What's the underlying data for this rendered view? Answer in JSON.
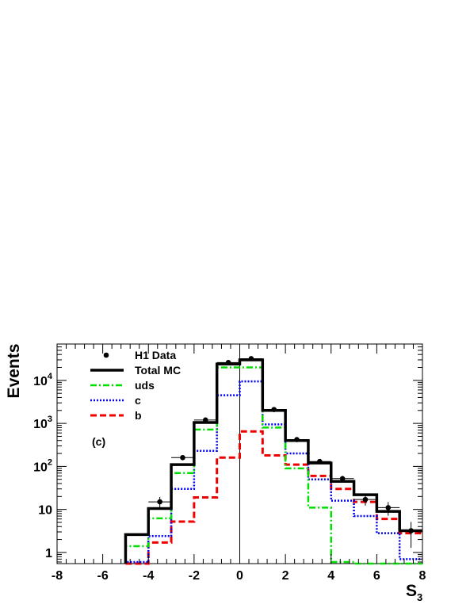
{
  "chart_data": {
    "type": "line",
    "title": "",
    "panel_label": "(c)",
    "xlabel": "S",
    "xlabel_sub": "3",
    "ylabel": "Events",
    "xlim": [
      -8,
      8
    ],
    "ylim": [
      0.55,
      70000
    ],
    "y_scale": "log",
    "grid": false,
    "legend_position": "top-left",
    "x_ticks": [
      -8,
      -6,
      -4,
      -2,
      0,
      2,
      4,
      6,
      8
    ],
    "y_ticks": [
      {
        "value": 1,
        "base": "1",
        "exp": ""
      },
      {
        "value": 10,
        "base": "10",
        "exp": ""
      },
      {
        "value": 100,
        "base": "10",
        "exp": "2"
      },
      {
        "value": 1000,
        "base": "10",
        "exp": "3"
      },
      {
        "value": 10000,
        "base": "10",
        "exp": "4"
      }
    ],
    "bin_edges": [
      -5,
      -4,
      -3,
      -2,
      -1,
      0,
      1,
      2,
      3,
      4,
      5,
      6,
      7,
      8
    ],
    "series": [
      {
        "name": "Total MC",
        "style": "solid",
        "color": "#000000",
        "values": [
          2.6,
          10.5,
          110,
          1050,
          24000,
          30000,
          2000,
          400,
          120,
          45,
          22,
          9,
          3.2
        ]
      },
      {
        "name": "uds",
        "style": "dashdot",
        "color": "#00dd00",
        "values": [
          1.4,
          6.2,
          70,
          720,
          20000,
          20000,
          800,
          90,
          11,
          0.6,
          0.5,
          0.5,
          0.5
        ]
      },
      {
        "name": "c",
        "style": "dotted",
        "color": "#0000ee",
        "values": [
          0.6,
          2.4,
          30,
          230,
          4500,
          9500,
          950,
          200,
          50,
          16,
          7,
          2.8,
          0.7
        ]
      },
      {
        "name": "b",
        "style": "dashed",
        "color": "#ee0000",
        "values": [
          0.55,
          1.7,
          5.2,
          19,
          160,
          650,
          180,
          110,
          60,
          30,
          15,
          6,
          2.8
        ]
      }
    ],
    "data_points": {
      "name": "H1 Data",
      "x": [
        -3.5,
        -2.5,
        -1.5,
        -0.5,
        0.5,
        1.5,
        2.5,
        3.5,
        4.5,
        5.5,
        6.5,
        7.5
      ],
      "y": [
        15,
        160,
        1200,
        26000,
        32000,
        2100,
        420,
        130,
        52,
        17,
        11,
        3.2
      ],
      "yerr_rel": [
        0.3,
        0.1,
        0.04,
        0.01,
        0.01,
        0.03,
        0.06,
        0.1,
        0.16,
        0.28,
        0.35,
        0.6
      ]
    },
    "colors": {
      "frame": "#000000",
      "zero_line": "#000000",
      "data": "#000000"
    }
  }
}
